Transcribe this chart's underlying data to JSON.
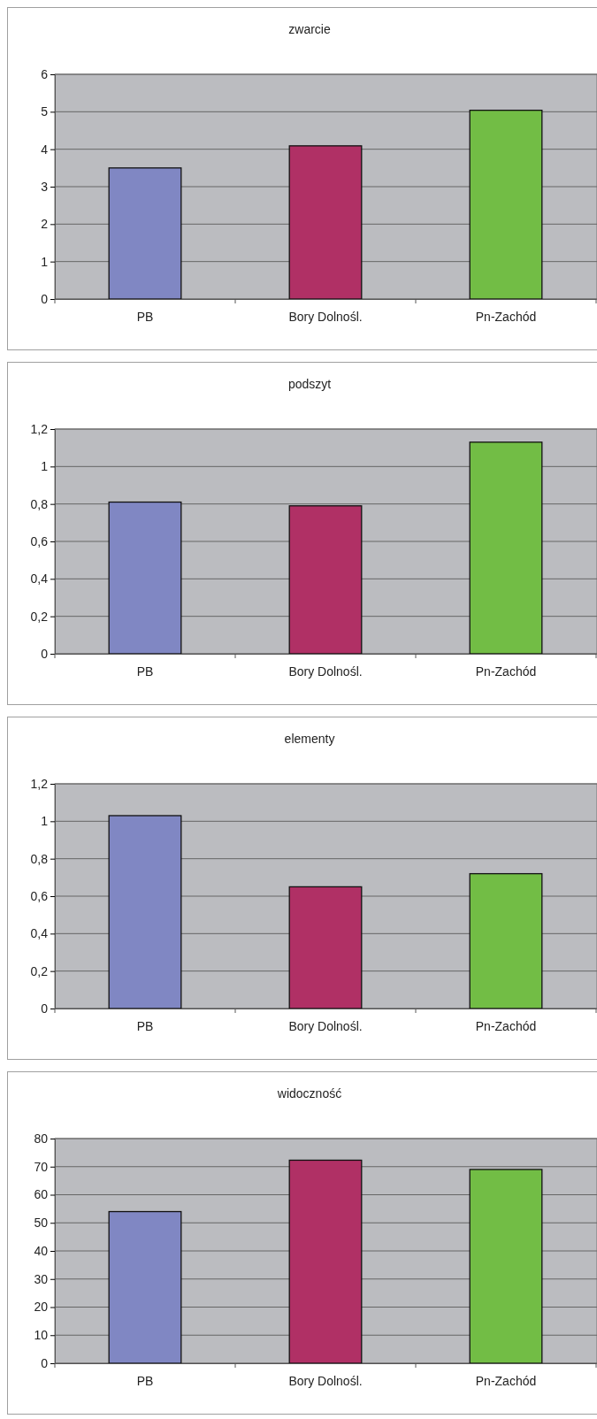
{
  "chart_data": [
    {
      "type": "bar",
      "title": "zwarcie",
      "categories": [
        "PB",
        "Bory Dolnośl.",
        "Pn-Zachód"
      ],
      "values": [
        3.5,
        4.09,
        5.04
      ],
      "colors": [
        "#8087c3",
        "#b03065",
        "#72bd45"
      ],
      "ylim": [
        0,
        6
      ],
      "yticks": [
        0,
        1,
        2,
        3,
        4,
        5,
        6
      ],
      "grid": "y"
    },
    {
      "type": "bar",
      "title": "podszyt",
      "categories": [
        "PB",
        "Bory Dolnośl.",
        "Pn-Zachód"
      ],
      "values": [
        0.81,
        0.79,
        1.13
      ],
      "colors": [
        "#8087c3",
        "#b03065",
        "#72bd45"
      ],
      "ylim": [
        0,
        1.2
      ],
      "yticks": [
        0,
        {
          "value": 0.2,
          "label": "0,2"
        },
        {
          "value": 0.4,
          "label": "0,4"
        },
        {
          "value": 0.6,
          "label": "0,6"
        },
        {
          "value": 0.8,
          "label": "0,8"
        },
        1,
        {
          "value": 1.2,
          "label": "1,2"
        }
      ],
      "grid": "y"
    },
    {
      "type": "bar",
      "title": "elementy",
      "categories": [
        "PB",
        "Bory Dolnośl.",
        "Pn-Zachód"
      ],
      "values": [
        1.03,
        0.65,
        0.72
      ],
      "colors": [
        "#8087c3",
        "#b03065",
        "#72bd45"
      ],
      "ylim": [
        0,
        1.2
      ],
      "yticks": [
        0,
        {
          "value": 0.2,
          "label": "0,2"
        },
        {
          "value": 0.4,
          "label": "0,4"
        },
        {
          "value": 0.6,
          "label": "0,6"
        },
        {
          "value": 0.8,
          "label": "0,8"
        },
        1,
        {
          "value": 1.2,
          "label": "1,2"
        }
      ],
      "grid": "y"
    },
    {
      "type": "bar",
      "title": "widoczność",
      "categories": [
        "PB",
        "Bory Dolnośl.",
        "Pn-Zachód"
      ],
      "values": [
        54,
        72.3,
        69
      ],
      "colors": [
        "#8087c3",
        "#b03065",
        "#72bd45"
      ],
      "ylim": [
        0,
        80
      ],
      "yticks": [
        0,
        10,
        20,
        30,
        40,
        50,
        60,
        70,
        80
      ],
      "grid": "y"
    }
  ]
}
